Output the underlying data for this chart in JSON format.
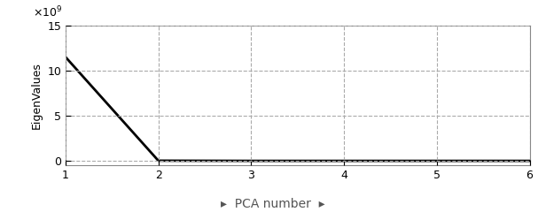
{
  "x": [
    1,
    2,
    3,
    4,
    5,
    6
  ],
  "y": [
    11500000000.0,
    20000000.0,
    0,
    0,
    0,
    0
  ],
  "xlabel": "PCA number",
  "ylabel": "EigenValues",
  "xlim": [
    1,
    6
  ],
  "ylim": [
    -500000000.0,
    15000000000.0
  ],
  "yticks": [
    0,
    5000000000.0,
    10000000000.0,
    15000000000.0
  ],
  "ytick_labels": [
    "0",
    "5",
    "10",
    "15"
  ],
  "xticks": [
    1,
    2,
    3,
    4,
    5,
    6
  ],
  "line_color": "#000000",
  "line_width": 2.0,
  "grid_color": "#aaaaaa",
  "background_color": "#ffffff",
  "fig_width": 6.16,
  "fig_height": 2.4,
  "dpi": 100
}
